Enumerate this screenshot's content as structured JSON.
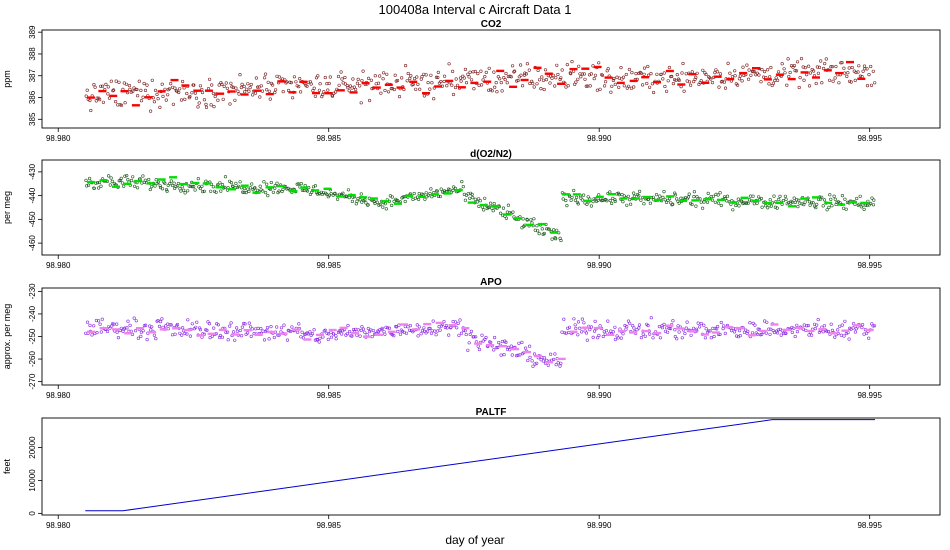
{
  "figure": {
    "title": "100408a   Interval c Aircraft Data 1",
    "xlabel": "day of year",
    "xlim": [
      98.9797,
      98.9963
    ],
    "xticks": [
      98.98,
      98.985,
      98.99,
      98.995
    ],
    "xtick_labels": [
      "98.980",
      "98.985",
      "98.990",
      "98.995"
    ]
  },
  "chart_data": [
    {
      "type": "scatter",
      "title": "CO2",
      "ylabel": "ppm",
      "ylim": [
        384.6,
        389.1
      ],
      "yticks": [
        385,
        386,
        387,
        388,
        389
      ],
      "ytick_labels": [
        "385",
        "386",
        "387",
        "388",
        "389"
      ],
      "x_range": [
        98.9805,
        98.9951
      ],
      "grid": false,
      "colors": {
        "flask": "#ff0000",
        "continuous": "#7a2020"
      },
      "segments": [
        {
          "x": [
            98.9805,
            98.99
          ],
          "trend": [
            386.1,
            387.0
          ],
          "noise": 0.55
        },
        {
          "x": [
            98.99,
            98.9951
          ],
          "trend": [
            386.8,
            387.2
          ],
          "noise": 0.5
        }
      ]
    },
    {
      "type": "scatter",
      "title": "d(O2/N2)",
      "ylabel": "per meg",
      "ylim": [
        -465,
        -425
      ],
      "yticks": [
        -430,
        -440,
        -450,
        -460
      ],
      "ytick_labels": [
        "-430",
        "-440",
        "-450",
        "-460"
      ],
      "x_range": [
        98.9805,
        98.9951
      ],
      "grid": false,
      "colors": {
        "flask": "#00dd00",
        "continuous": "#1a5a1a"
      },
      "segments": [
        {
          "x": [
            98.9805,
            98.9845
          ],
          "trend": [
            -434,
            -437
          ],
          "noise": 2.5
        },
        {
          "x": [
            98.9845,
            98.986
          ],
          "trend": [
            -437,
            -443
          ],
          "noise": 2.2
        },
        {
          "x": [
            98.986,
            98.9875
          ],
          "trend": [
            -443,
            -437
          ],
          "noise": 2.0
        },
        {
          "x": [
            98.9875,
            98.9893
          ],
          "trend": [
            -440,
            -458
          ],
          "noise": 2.8
        },
        {
          "x": [
            98.9893,
            98.9951
          ],
          "trend": [
            -441,
            -443
          ],
          "noise": 2.5
        }
      ]
    },
    {
      "type": "scatter",
      "title": "APO",
      "ylabel": "approx. per meg",
      "ylim": [
        -271.5,
        -228.5
      ],
      "yticks": [
        -230,
        -240,
        -250,
        -260,
        -270
      ],
      "ytick_labels": [
        "-230",
        "-240",
        "-250",
        "-260",
        "-270"
      ],
      "x_range": [
        98.9805,
        98.9951
      ],
      "grid": false,
      "colors": {
        "flask": "#ee82ee",
        "continuous": "#8a2be2"
      },
      "segments": [
        {
          "x": [
            98.9805,
            98.9845
          ],
          "trend": [
            -246,
            -248
          ],
          "noise": 3.5
        },
        {
          "x": [
            98.9845,
            98.9875
          ],
          "trend": [
            -250,
            -245
          ],
          "noise": 3.0
        },
        {
          "x": [
            98.9875,
            98.9893
          ],
          "trend": [
            -250,
            -262
          ],
          "noise": 3.5
        },
        {
          "x": [
            98.9893,
            98.9951
          ],
          "trend": [
            -247,
            -247
          ],
          "noise": 3.5
        }
      ]
    },
    {
      "type": "line",
      "title": "PALTF",
      "ylabel": "feet",
      "ylim": [
        -500,
        29000
      ],
      "yticks": [
        0,
        10000,
        20000
      ],
      "ytick_labels": [
        "0",
        "10000",
        "20000"
      ],
      "grid": false,
      "color": "#0000cc",
      "x": [
        98.9805,
        98.9812,
        98.9932,
        98.9951
      ],
      "y": [
        800,
        800,
        28500,
        28500
      ]
    }
  ]
}
